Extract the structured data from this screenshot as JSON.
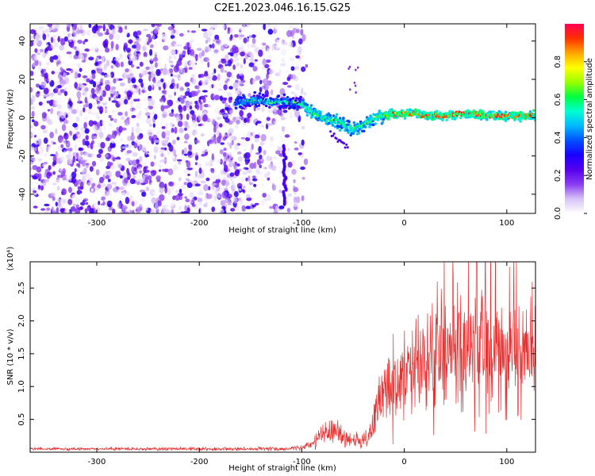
{
  "figure": {
    "title": "C2E1.2023.046.16.15.G25"
  },
  "chart_data": [
    {
      "type": "heatmap",
      "title": "C2E1.2023.046.16.15.G25",
      "xlabel": "Height of straight line (km)",
      "ylabel": "Frequency (Hz)",
      "xlim": [
        -365,
        128
      ],
      "ylim": [
        -50,
        49
      ],
      "x_ticks": [
        -300,
        -200,
        -100,
        0,
        100
      ],
      "y_ticks": [
        -40,
        -20,
        0,
        20,
        40
      ],
      "colorbar": {
        "label": "Normalized spectral amplitude",
        "range": [
          0.0,
          1.0
        ],
        "ticks": [
          0.0,
          0.2,
          0.4,
          0.6,
          0.8
        ],
        "tick_labels": [
          "0.0",
          "0.2",
          "0.4",
          "0.6",
          "0.8"
        ],
        "colormap": [
          "#ffffff",
          "#d8c3f7",
          "#8a3cf0",
          "#5500ee",
          "#1a00ff",
          "#0050ff",
          "#00b8ff",
          "#00ffd0",
          "#00ff40",
          "#9bff00",
          "#ffff00",
          "#ffa500",
          "#ff3000",
          "#ff0055"
        ]
      },
      "ridge": {
        "x": [
          -160,
          -145,
          -130,
          -110,
          -100,
          -95,
          -90,
          -85,
          -80,
          -75,
          -70,
          -65,
          -60,
          -55,
          -50,
          -45,
          -40,
          -35,
          -30,
          -25,
          -20,
          -10,
          0,
          10,
          20,
          30,
          40,
          50,
          60,
          70,
          80,
          90,
          100,
          110,
          125
        ],
        "y": [
          8,
          9,
          8,
          8,
          7,
          5,
          3,
          1,
          0,
          -1,
          -1,
          -2,
          -3,
          -5,
          -6,
          -5,
          -4,
          -2,
          -1,
          1,
          1,
          2,
          2,
          2,
          1,
          1,
          1,
          2,
          2,
          2,
          1,
          1,
          1,
          1,
          1
        ]
      }
    },
    {
      "type": "line",
      "xlabel": "Height of straight line (km)",
      "ylabel": "SNR (10 * v/v)",
      "y_multiplier": "(x10⁴)",
      "xlim": [
        -365,
        128
      ],
      "ylim": [
        0,
        29000
      ],
      "x_ticks": [
        -300,
        -200,
        -100,
        0,
        100
      ],
      "y_ticks": [
        5000,
        10000,
        15000,
        20000,
        25000
      ],
      "y_tick_labels": [
        "0.5",
        "1.0",
        "1.5",
        "2.0",
        "2.5"
      ],
      "color": "#e8302f",
      "envelope": {
        "x": [
          -365,
          -120,
          -100,
          -90,
          -80,
          -70,
          -60,
          -50,
          -45,
          -40,
          -35,
          -30,
          -25,
          -20,
          -15,
          -10,
          -5,
          0,
          10,
          20,
          30,
          40,
          50,
          60,
          70,
          80,
          90,
          100,
          110,
          120,
          128
        ],
        "mean": [
          500,
          500,
          700,
          1200,
          2800,
          3000,
          2500,
          1800,
          1800,
          1500,
          2000,
          4500,
          7000,
          9000,
          10500,
          10000,
          10000,
          11000,
          13000,
          14000,
          15000,
          15500,
          16500,
          17000,
          17000,
          16500,
          16000,
          16000,
          15500,
          15000,
          15000
        ],
        "spread": [
          150,
          250,
          300,
          500,
          1400,
          1500,
          1200,
          800,
          800,
          900,
          1500,
          2500,
          3500,
          4000,
          4500,
          4500,
          5000,
          5000,
          5500,
          6000,
          6500,
          7000,
          7000,
          7500,
          7500,
          7500,
          7000,
          6500,
          6000,
          5500,
          5000
        ]
      }
    }
  ]
}
